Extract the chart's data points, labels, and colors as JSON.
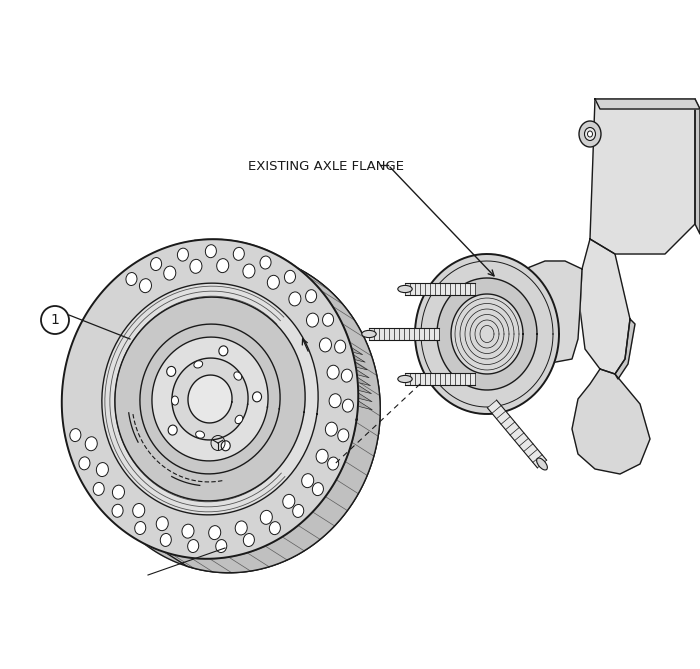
{
  "bg_color": "#ffffff",
  "line_color": "#1a1a1a",
  "fill_rotor_face": "#d4d4d4",
  "fill_rotor_inner": "#e0e0e0",
  "fill_rotor_hub": "#c8c8c8",
  "fill_rotor_center": "#d8d8d8",
  "fill_rotor_rim": "#c0c0c0",
  "fill_hub_face": "#c8c8c8",
  "fill_hub_inner": "#d0d0d0",
  "fill_knuckle": "#d8d8d8",
  "fill_knuckle_dark": "#c0c0c0",
  "fill_white": "#ffffff",
  "label_flange": "EXISTING AXLE FLANGE",
  "label_1": "1",
  "figsize": [
    7.0,
    6.69
  ],
  "dpi": 100
}
